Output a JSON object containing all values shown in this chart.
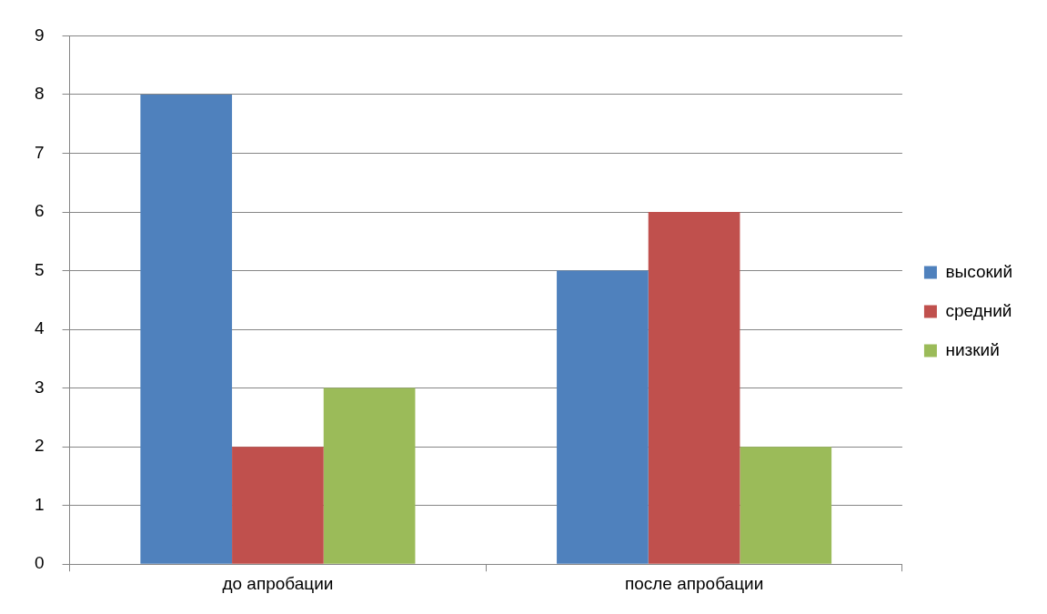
{
  "chart_data": {
    "type": "bar",
    "categories": [
      "до апробации",
      "после апробации"
    ],
    "series": [
      {
        "name": "высокий",
        "color": "#4f81bd",
        "values": [
          8,
          5
        ]
      },
      {
        "name": "средний",
        "color": "#c0504d",
        "values": [
          2,
          6
        ]
      },
      {
        "name": "низкий",
        "color": "#9bbb59",
        "values": [
          3,
          2
        ]
      }
    ],
    "ylim": [
      0,
      9
    ],
    "yticks": [
      0,
      1,
      2,
      3,
      4,
      5,
      6,
      7,
      8,
      9
    ],
    "grid": "y",
    "legend": "right"
  }
}
